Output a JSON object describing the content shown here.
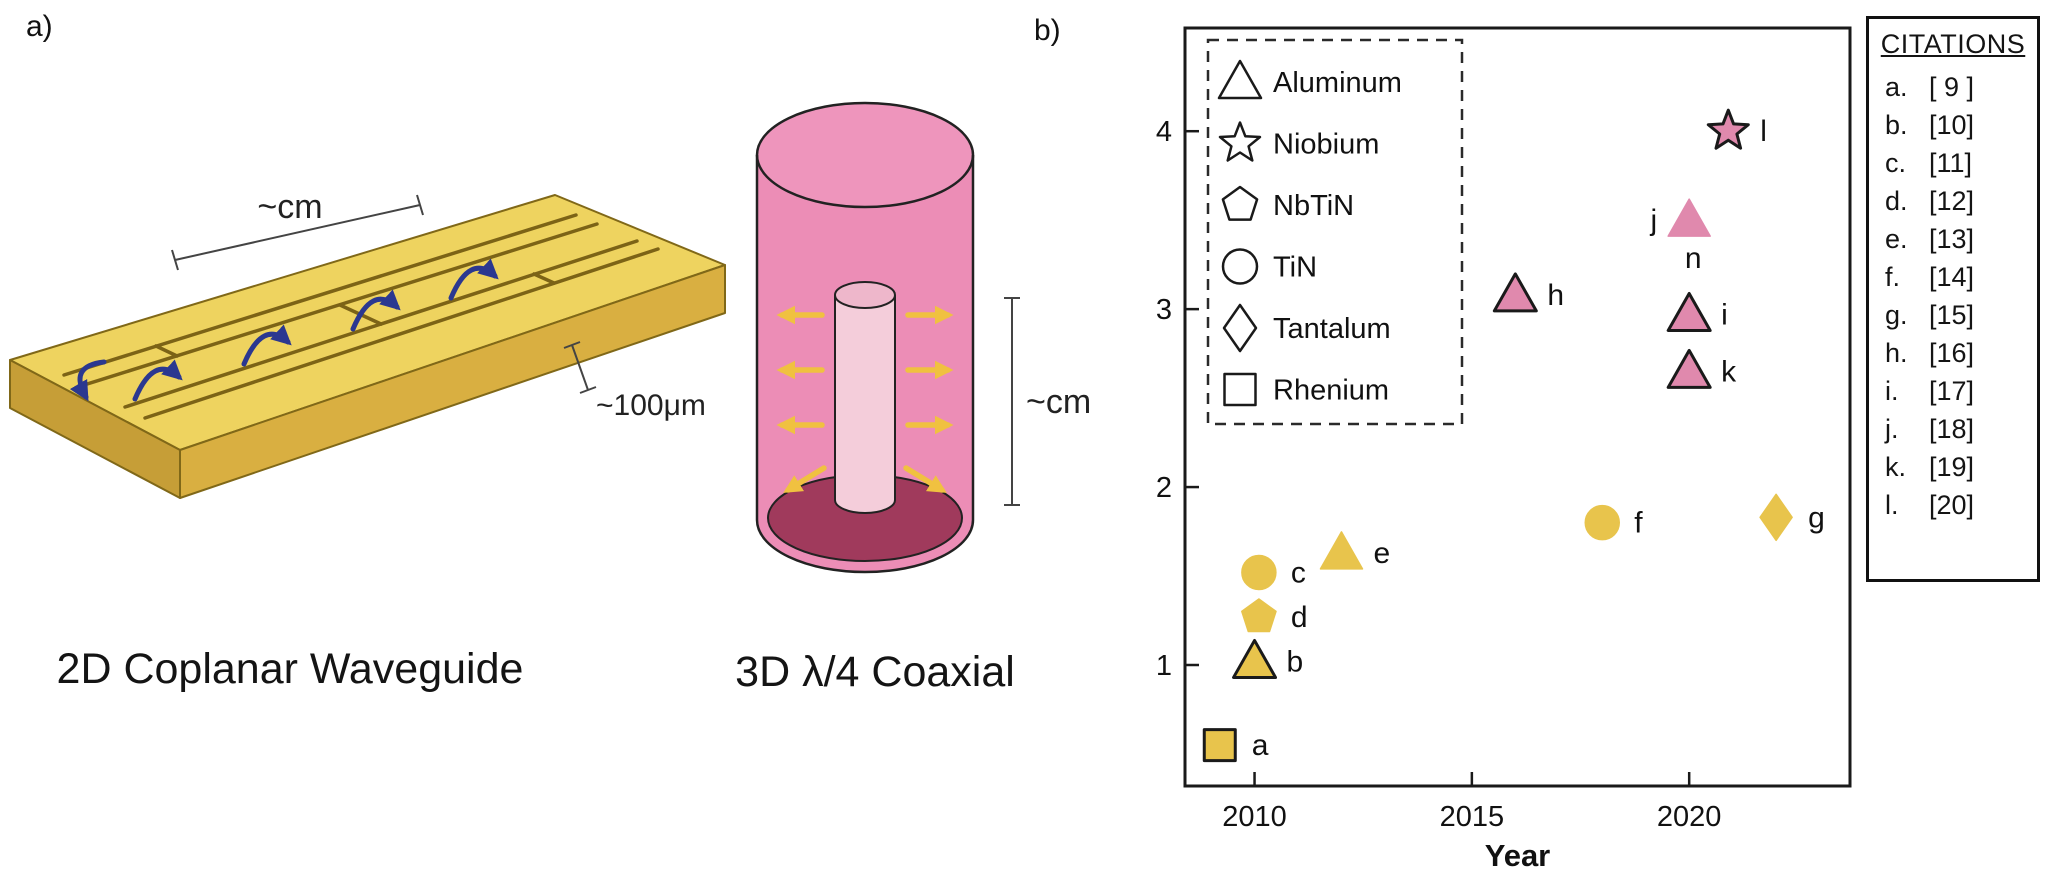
{
  "panel_a": {
    "label": "a)",
    "waveguide": {
      "caption": "2D Coplanar Waveguide",
      "scale_length": "~cm",
      "scale_thickness": "~100μm"
    },
    "coaxial": {
      "caption": "3D λ/4 Coaxial",
      "scale_height": "~cm"
    }
  },
  "panel_b": {
    "label": "b)",
    "citations": {
      "title": "CITATIONS",
      "entries": [
        {
          "key": "a.",
          "ref": "[ 9 ]"
        },
        {
          "key": "b.",
          "ref": "[10]"
        },
        {
          "key": "c.",
          "ref": "[11]"
        },
        {
          "key": "d.",
          "ref": "[12]"
        },
        {
          "key": "e.",
          "ref": "[13]"
        },
        {
          "key": "f.",
          "ref": "[14]"
        },
        {
          "key": "g.",
          "ref": "[15]"
        },
        {
          "key": "h.",
          "ref": "[16]"
        },
        {
          "key": "i.",
          "ref": "[17]"
        },
        {
          "key": "j.",
          "ref": "[18]"
        },
        {
          "key": "k.",
          "ref": "[19]"
        },
        {
          "key": "l.",
          "ref": "[20]"
        }
      ]
    }
  },
  "chart_data": {
    "type": "scatter",
    "title": "",
    "xlabel": "Year",
    "ylabel": "",
    "xlim": [
      2008.4,
      2023.7
    ],
    "ylim": [
      0.32,
      4.58
    ],
    "xticks": [
      2010,
      2015,
      2020
    ],
    "yticks": [
      1,
      2,
      3,
      4
    ],
    "grid": false,
    "legend_position": "upper left",
    "colors": {
      "yellow_series": "#e8c44c",
      "pink_series": "#e089ad",
      "frame": "#1a1a1a"
    },
    "legend": [
      {
        "label": "Aluminum",
        "marker": "triangle"
      },
      {
        "label": "Niobium",
        "marker": "star"
      },
      {
        "label": "NbTiN",
        "marker": "pentagon"
      },
      {
        "label": "TiN",
        "marker": "circle"
      },
      {
        "label": "Tantalum",
        "marker": "diamond"
      },
      {
        "label": "Rhenium",
        "marker": "square"
      }
    ],
    "points": [
      {
        "label": "a",
        "material": "Rhenium",
        "marker": "square",
        "x": 2009.2,
        "y": 0.55,
        "series": "yellow",
        "edge": true,
        "label_side": "right"
      },
      {
        "label": "b",
        "material": "Aluminum",
        "marker": "triangle",
        "x": 2010,
        "y": 1.02,
        "series": "yellow",
        "edge": true,
        "label_side": "right"
      },
      {
        "label": "c",
        "material": "TiN",
        "marker": "circle",
        "x": 2010.1,
        "y": 1.52,
        "series": "yellow",
        "edge": false,
        "label_side": "right"
      },
      {
        "label": "d",
        "material": "NbTiN",
        "marker": "pentagon",
        "x": 2010.1,
        "y": 1.27,
        "series": "yellow",
        "edge": false,
        "label_side": "right"
      },
      {
        "label": "e",
        "material": "Aluminum",
        "marker": "triangle",
        "x": 2012,
        "y": 1.63,
        "series": "yellow",
        "edge": false,
        "label_side": "right"
      },
      {
        "label": "f",
        "material": "TiN",
        "marker": "circle",
        "x": 2018,
        "y": 1.8,
        "series": "yellow",
        "edge": false,
        "label_side": "right"
      },
      {
        "label": "g",
        "material": "Tantalum",
        "marker": "diamond",
        "x": 2022,
        "y": 1.83,
        "series": "yellow",
        "edge": false,
        "label_side": "right"
      },
      {
        "label": "h",
        "material": "Aluminum",
        "marker": "triangle",
        "x": 2016,
        "y": 3.08,
        "series": "pink",
        "edge": true,
        "label_side": "right"
      },
      {
        "label": "i",
        "material": "Aluminum",
        "marker": "triangle",
        "x": 2020,
        "y": 2.97,
        "series": "pink",
        "edge": true,
        "label_side": "right"
      },
      {
        "label": "j",
        "material": "Aluminum",
        "marker": "triangle",
        "x": 2020,
        "y": 3.5,
        "series": "pink",
        "edge": false,
        "label_side": "left",
        "sublabel": "n"
      },
      {
        "label": "k",
        "material": "Aluminum",
        "marker": "triangle",
        "x": 2020,
        "y": 2.65,
        "series": "pink",
        "edge": true,
        "label_side": "right"
      },
      {
        "label": "l",
        "material": "Niobium",
        "marker": "star",
        "x": 2020.9,
        "y": 4.0,
        "series": "pink",
        "edge": true,
        "label_side": "right"
      }
    ]
  }
}
